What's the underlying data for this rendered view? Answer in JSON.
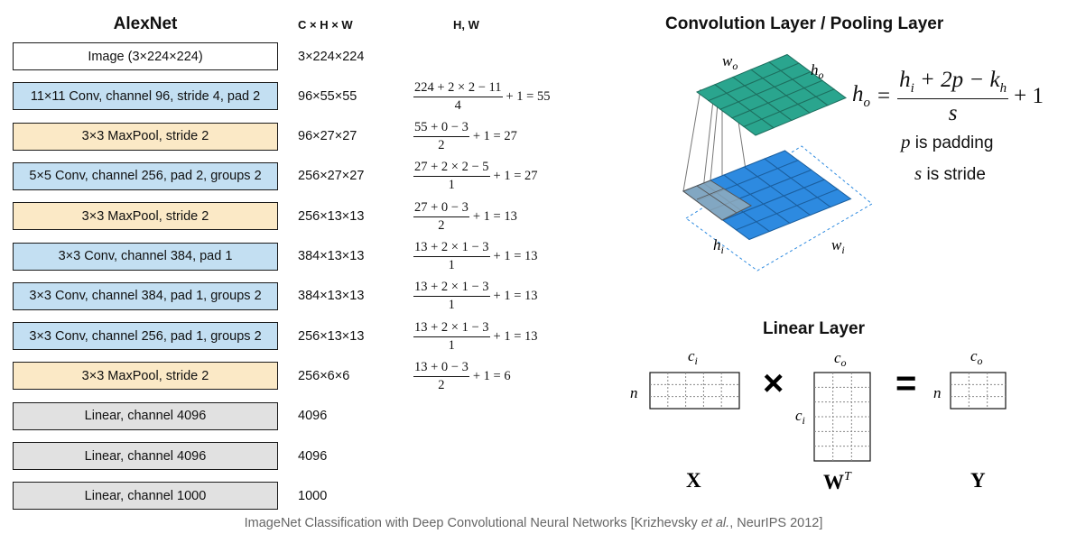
{
  "headers": {
    "alexnet": "AlexNet",
    "shape_col": "C × H × W",
    "hw_col": "H, W",
    "conv_title": "Convolution Layer / Pooling Layer",
    "linear_title": "Linear Layer"
  },
  "colors": {
    "image_fill": "#ffffff",
    "conv_fill": "#c3dff2",
    "pool_fill": "#fbe9c6",
    "linear_fill": "#e1e1e1",
    "output_grid": "#2aa58e",
    "input_grid": "#2d8ae0",
    "kernel_patch": "#9fb0b8"
  },
  "layers": [
    {
      "label": "Image (3×224×224)",
      "kind": "image",
      "shape": "3×224×224"
    },
    {
      "label": "11×11 Conv, channel 96, stride 4, pad 2",
      "kind": "conv",
      "shape": "96×55×55",
      "num": "224 + 2 × 2 − 11",
      "den": "4",
      "rest": "+ 1 = 55"
    },
    {
      "label": "3×3 MaxPool, stride 2",
      "kind": "pool",
      "shape": "96×27×27",
      "num": "55 + 0 − 3",
      "den": "2",
      "rest": "+ 1 = 27"
    },
    {
      "label": "5×5 Conv, channel 256, pad 2, groups 2",
      "kind": "conv",
      "shape": "256×27×27",
      "num": "27 + 2 × 2 − 5",
      "den": "1",
      "rest": "+ 1 = 27"
    },
    {
      "label": "3×3 MaxPool, stride 2",
      "kind": "pool",
      "shape": "256×13×13",
      "num": "27 + 0 − 3",
      "den": "2",
      "rest": "+ 1 = 13"
    },
    {
      "label": "3×3 Conv, channel 384, pad 1",
      "kind": "conv",
      "shape": "384×13×13",
      "num": "13 + 2 × 1 − 3",
      "den": "1",
      "rest": "+ 1 = 13"
    },
    {
      "label": "3×3 Conv, channel 384, pad 1, groups 2",
      "kind": "conv",
      "shape": "384×13×13",
      "num": "13 + 2 × 1 − 3",
      "den": "1",
      "rest": "+ 1 = 13"
    },
    {
      "label": "3×3 Conv, channel 256, pad 1, groups 2",
      "kind": "conv",
      "shape": "256×13×13",
      "num": "13 + 2 × 1 − 3",
      "den": "1",
      "rest": "+ 1 = 13"
    },
    {
      "label": "3×3 MaxPool, stride 2",
      "kind": "pool",
      "shape": "256×6×6",
      "num": "13 + 0 − 3",
      "den": "2",
      "rest": "+ 1 = 6"
    },
    {
      "label": "Linear, channel 4096",
      "kind": "linear",
      "shape": "4096"
    },
    {
      "label": "Linear, channel 4096",
      "kind": "linear",
      "shape": "4096"
    },
    {
      "label": "Linear, channel 1000",
      "kind": "linear",
      "shape": "1000"
    }
  ],
  "conv_diagram": {
    "wo": "w",
    "wo_sub": "o",
    "ho": "h",
    "ho_sub": "o",
    "hi": "h",
    "hi_sub": "i",
    "wi": "w",
    "wi_sub": "i"
  },
  "formula": {
    "lhs": "h",
    "lhs_sub": "o",
    "num_a": "h",
    "num_a_sub": "i",
    "num_b": " + 2p − k",
    "num_b_sub": "h",
    "den": "s",
    "plus": "+ 1",
    "p_var": "p",
    "p_text": " is padding",
    "s_var": "s",
    "s_text": " is stride"
  },
  "linear": {
    "ci_top": "c",
    "ci_top_sub": "i",
    "n_x": "n",
    "co_w": "c",
    "co_w_sub": "o",
    "ci_side": "c",
    "ci_side_sub": "i",
    "co_y": "c",
    "co_y_sub": "o",
    "n_y": "n",
    "times": "×",
    "equals": "=",
    "x_label": "X",
    "w_label": "W",
    "w_sup": "T",
    "y_label": "Y"
  },
  "caption": {
    "pre": "ImageNet Classification with Deep Convolutional Neural Networks [Krizhevsky ",
    "etal": "et al.",
    "post": ", NeurIPS 2012]"
  }
}
